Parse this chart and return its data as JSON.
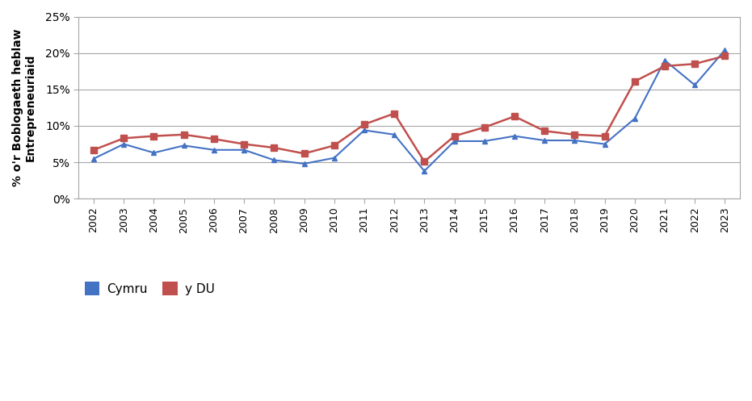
{
  "years": [
    2002,
    2003,
    2004,
    2005,
    2006,
    2007,
    2008,
    2009,
    2010,
    2011,
    2012,
    2013,
    2014,
    2015,
    2016,
    2017,
    2018,
    2019,
    2020,
    2021,
    2022,
    2023
  ],
  "cymru": [
    0.055,
    0.075,
    0.063,
    0.073,
    0.067,
    0.067,
    0.053,
    0.048,
    0.056,
    0.094,
    0.088,
    0.038,
    0.079,
    0.079,
    0.086,
    0.08,
    0.08,
    0.075,
    0.11,
    0.19,
    0.156,
    0.204
  ],
  "y_du": [
    0.067,
    0.083,
    0.086,
    0.088,
    0.082,
    0.075,
    0.07,
    0.062,
    0.073,
    0.102,
    0.117,
    0.051,
    0.086,
    0.098,
    0.113,
    0.093,
    0.088,
    0.086,
    0.161,
    0.182,
    0.185,
    0.196
  ],
  "cymru_color": "#4472C4",
  "y_du_color": "#C0504D",
  "ylabel": "% o'r Boblogaeth heblaw\nEntrepreneuriaid",
  "ylim": [
    0,
    0.25
  ],
  "yticks": [
    0,
    0.05,
    0.1,
    0.15,
    0.2,
    0.25
  ],
  "ytick_labels": [
    "0%",
    "5%",
    "10%",
    "15%",
    "20%",
    "25%"
  ],
  "legend_cymru": "Cymru",
  "legend_y_du": "y DU",
  "background_color": "#ffffff",
  "grid_color": "#a6a6a6",
  "spine_color": "#a6a6a6"
}
